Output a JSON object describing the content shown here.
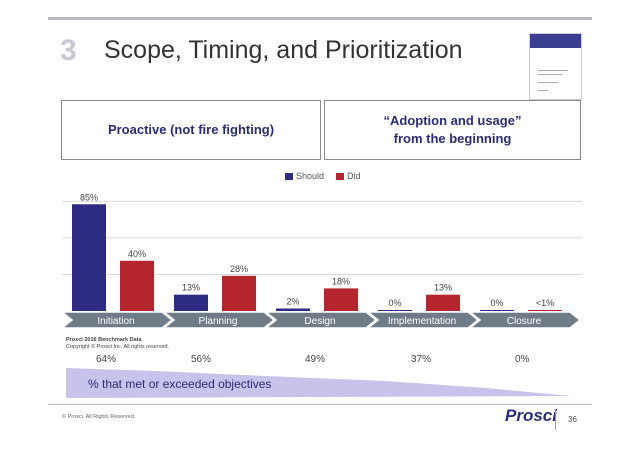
{
  "slide": {
    "number": "3",
    "title": "Scope, Timing, and Prioritization"
  },
  "boxes": {
    "left": "Proactive (not fire fighting)",
    "right_line1": "“Adoption and usage”",
    "right_line2": "from the beginning"
  },
  "legend": {
    "should": "Should",
    "did": "Did"
  },
  "chart_data": {
    "type": "bar",
    "categories": [
      "Initiation",
      "Planning",
      "Design",
      "Implementation",
      "Closure"
    ],
    "series": [
      {
        "name": "Should",
        "values": [
          85,
          13,
          2,
          0,
          0
        ],
        "labels": [
          "85%",
          "13%",
          "2%",
          "0%",
          "0%"
        ],
        "color": "#2e2c82"
      },
      {
        "name": "Did",
        "values": [
          40,
          28,
          18,
          13,
          0.5
        ],
        "labels": [
          "40%",
          "28%",
          "18%",
          "13%",
          "<1%"
        ],
        "color": "#b5252d"
      }
    ],
    "ylim": [
      0,
      90
    ],
    "grid": true,
    "legend": "top-center"
  },
  "source_note": {
    "line1": "Prosci 2016 Benchmark Data",
    "line2": "Copyright © Prosci Inc. All rights reserved."
  },
  "objectives": {
    "values": [
      "64%",
      "56%",
      "49%",
      "37%",
      "0%"
    ],
    "label": "% that met or exceeded objectives"
  },
  "footer": {
    "copyright": "© Prosci. All Rights Reserved.",
    "logo": "Prosci",
    "page": "36"
  },
  "colors": {
    "should": "#2e2c82",
    "did": "#b5252d",
    "phase_arrow": "#6f7b86",
    "wedge": "#c7c3ea"
  }
}
